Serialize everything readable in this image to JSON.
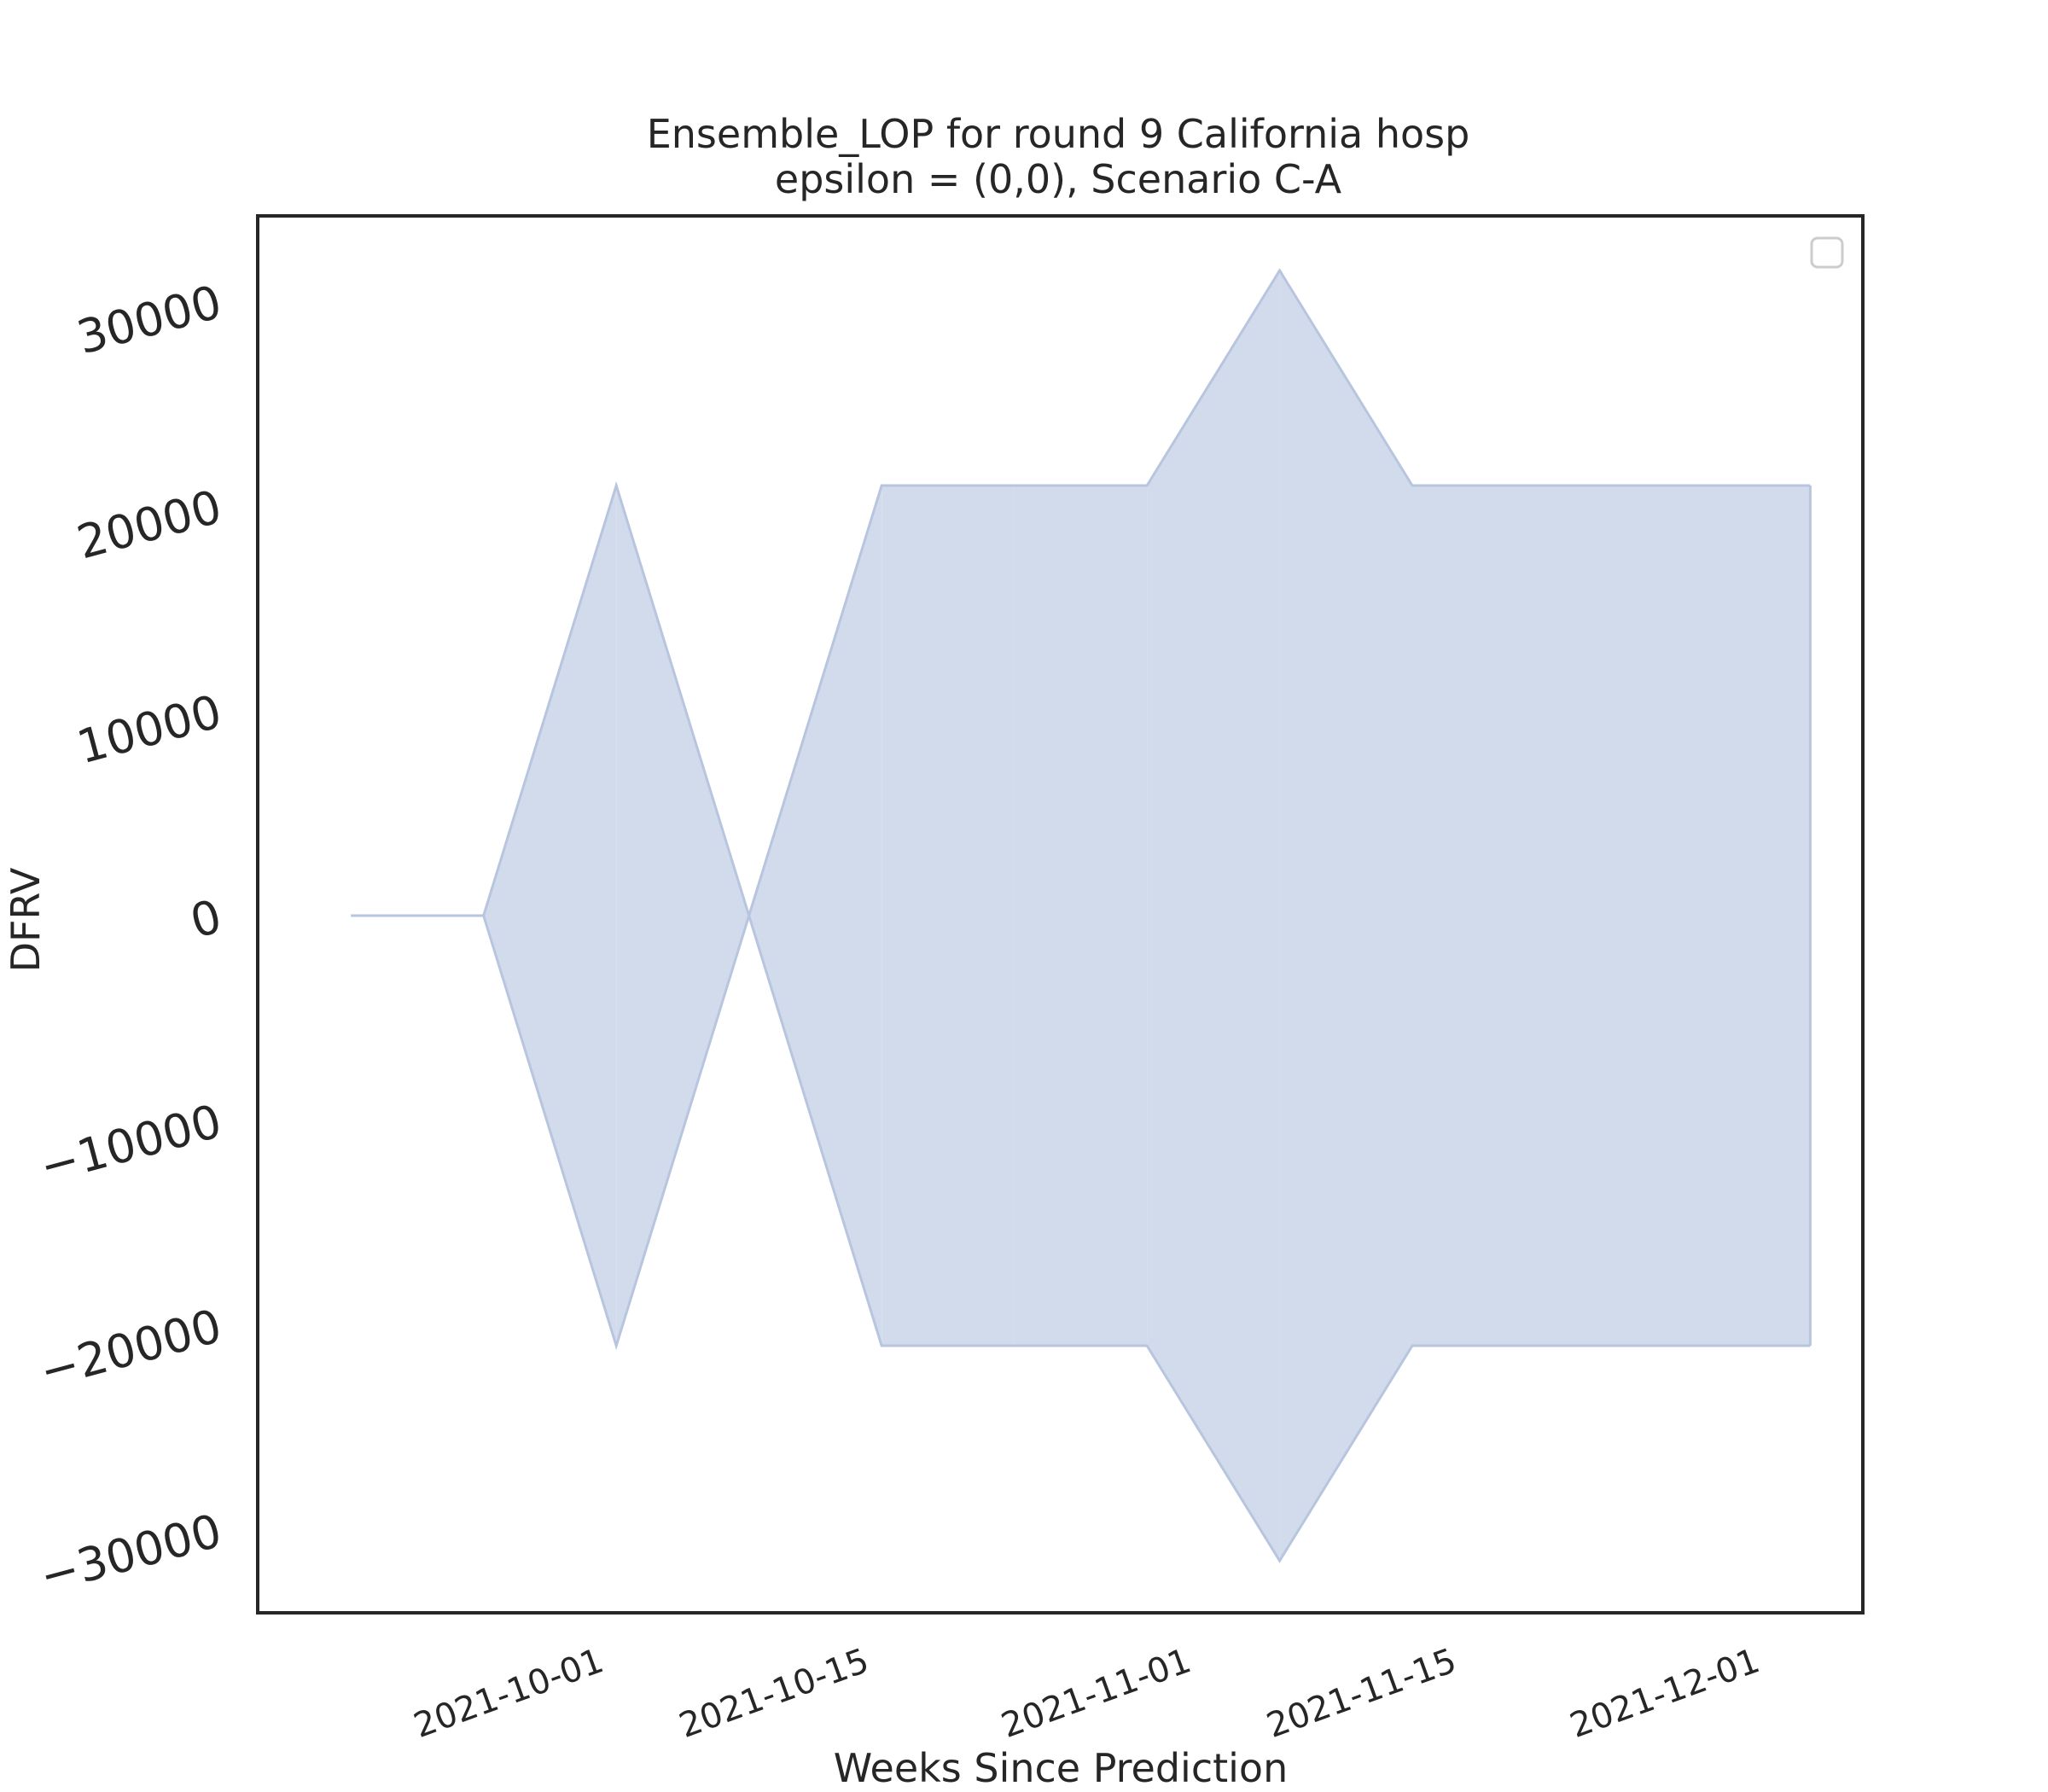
{
  "chart_data": {
    "type": "area",
    "title": "Ensemble_LOP for round 9 California hosp",
    "subtitle": "epsilon = (0,0), Scenario C-A",
    "xlabel": "Weeks Since Prediction",
    "ylabel": "DFRV",
    "x_ticks": [
      "2021-10-01",
      "2021-10-15",
      "2021-11-01",
      "2021-11-15",
      "2021-12-01"
    ],
    "y_ticks": [
      -30000,
      -20000,
      -10000,
      0,
      10000,
      20000,
      30000
    ],
    "y_tick_labels": [
      "−30000",
      "−20000",
      "−10000",
      "0",
      "10000",
      "20000",
      "30000"
    ],
    "ylim": [
      -34000,
      34700
    ],
    "x": [
      "2021-09-18",
      "2021-09-25",
      "2021-10-02",
      "2021-10-09",
      "2021-10-16",
      "2021-10-23",
      "2021-10-30",
      "2021-11-06",
      "2021-11-13",
      "2021-11-20",
      "2021-11-27",
      "2021-12-04"
    ],
    "upper": [
      0,
      0,
      21000,
      0,
      21000,
      21000,
      21000,
      31500,
      21000,
      21000,
      21000,
      21000
    ],
    "lower": [
      0,
      0,
      -21000,
      0,
      -21000,
      -21000,
      -21000,
      -31500,
      -21000,
      -21000,
      -21000,
      -21000
    ],
    "fill_color": "#d2dbeb",
    "edge_color": "#b7c5df",
    "legend": "empty box, top-right",
    "grid": false
  }
}
